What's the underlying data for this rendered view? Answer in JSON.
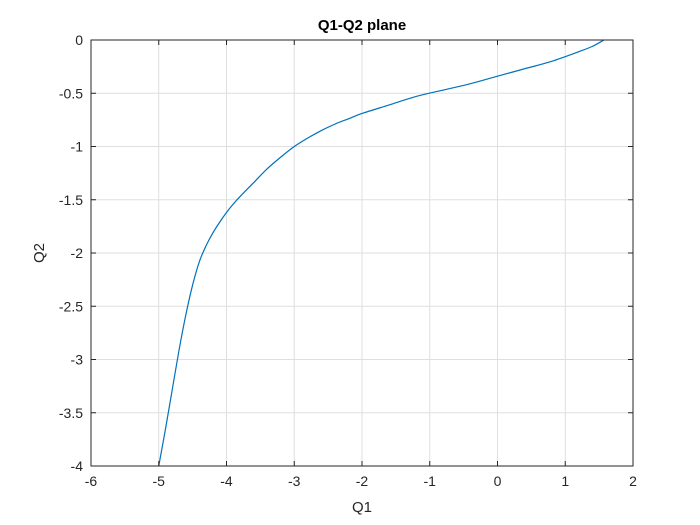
{
  "chart_data": {
    "type": "line",
    "title": "Q1-Q2 plane",
    "xlabel": "Q1",
    "ylabel": "Q2",
    "xlim": [
      -6,
      2
    ],
    "ylim": [
      -4,
      0
    ],
    "xticks": [
      -6,
      -5,
      -4,
      -3,
      -2,
      -1,
      0,
      1,
      2
    ],
    "yticks": [
      0,
      -0.5,
      -1,
      -1.5,
      -2,
      -2.5,
      -3,
      -3.5,
      -4
    ],
    "xtick_labels": [
      "-6",
      "-5",
      "-4",
      "-3",
      "-2",
      "-1",
      "0",
      "1",
      "2"
    ],
    "ytick_labels": [
      "0",
      "-0.5",
      "-1",
      "-1.5",
      "-2",
      "-2.5",
      "-3",
      "-3.5",
      "-4"
    ],
    "grid": true,
    "series": [
      {
        "color": "#0072BD",
        "x": [
          -5.0,
          -4.9,
          -4.8,
          -4.7,
          -4.6,
          -4.5,
          -4.4,
          -4.3,
          -4.2,
          -4.1,
          -4.0,
          -3.9,
          -3.8,
          -3.6,
          -3.4,
          -3.2,
          -3.0,
          -2.8,
          -2.6,
          -2.4,
          -2.2,
          -2.0,
          -1.6,
          -1.2,
          -0.8,
          -0.4,
          0.0,
          0.4,
          0.8,
          1.2,
          1.4,
          1.57
        ],
        "y": [
          -4.0,
          -3.65,
          -3.28,
          -2.91,
          -2.58,
          -2.3,
          -2.08,
          -1.93,
          -1.81,
          -1.71,
          -1.62,
          -1.54,
          -1.47,
          -1.34,
          -1.21,
          -1.1,
          -1.0,
          -0.92,
          -0.85,
          -0.79,
          -0.74,
          -0.69,
          -0.61,
          -0.53,
          -0.47,
          -0.41,
          -0.34,
          -0.27,
          -0.2,
          -0.11,
          -0.06,
          0.0
        ]
      }
    ]
  }
}
